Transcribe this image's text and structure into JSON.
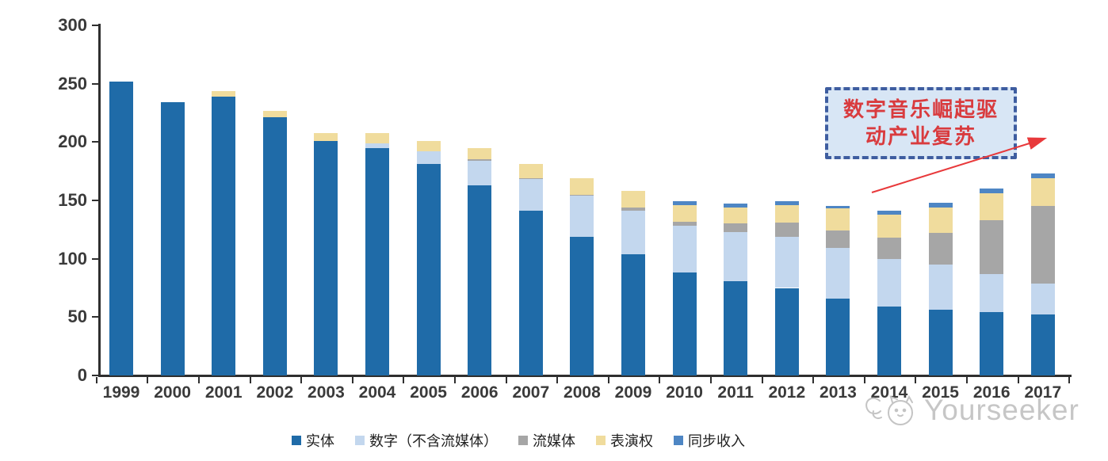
{
  "chart_data": {
    "type": "bar",
    "stacked": true,
    "title": "",
    "xlabel": "",
    "ylabel": "",
    "categories": [
      "1999",
      "2000",
      "2001",
      "2002",
      "2003",
      "2004",
      "2005",
      "2006",
      "2007",
      "2008",
      "2009",
      "2010",
      "2011",
      "2012",
      "2013",
      "2014",
      "2015",
      "2016",
      "2017"
    ],
    "series": [
      {
        "name": "实体",
        "key": "physical",
        "color": "#1f6ba8",
        "values": [
          252,
          234,
          239,
          221,
          201,
          195,
          181,
          163,
          141,
          119,
          104,
          88,
          81,
          75,
          66,
          59,
          56,
          54,
          52
        ]
      },
      {
        "name": "数字（不含流媒体）",
        "key": "digital-excl-streaming",
        "color": "#c3d7ee",
        "values": [
          0,
          0,
          0,
          0,
          0,
          4,
          11,
          21,
          27,
          35,
          37,
          40,
          42,
          44,
          43,
          41,
          39,
          33,
          27
        ]
      },
      {
        "name": "流媒体",
        "key": "streaming",
        "color": "#a6a6a6",
        "values": [
          0,
          0,
          0,
          0,
          0,
          0,
          0,
          1,
          1,
          1,
          3,
          4,
          7,
          12,
          15,
          18,
          27,
          46,
          66
        ]
      },
      {
        "name": "表演权",
        "key": "performance-rights",
        "color": "#f0dc9d",
        "values": [
          0,
          0,
          5,
          6,
          7,
          9,
          9,
          10,
          12,
          14,
          14,
          14,
          14,
          15,
          19,
          20,
          22,
          23,
          24
        ]
      },
      {
        "name": "同步收入",
        "key": "sync-revenue",
        "color": "#4e86c4",
        "values": [
          0,
          0,
          0,
          0,
          0,
          0,
          0,
          0,
          0,
          0,
          0,
          3,
          3,
          3,
          2,
          3,
          4,
          4,
          4
        ]
      }
    ],
    "ylim": [
      0,
      300
    ],
    "yticks": [
      0,
      50,
      100,
      150,
      200,
      250,
      300
    ],
    "grid": false,
    "legend_position": "bottom"
  },
  "annotation": {
    "line1": "数字音乐崛起驱",
    "line2": "动产业复苏",
    "box_fill": "#d8e6f5",
    "border_color": "#3e5da0",
    "text_color": "#d93b3e",
    "arrow_color": "#e8393b"
  },
  "watermark": {
    "text": "Yourseeker",
    "color": "#c6c6c6"
  },
  "style": {
    "axis_color": "#2f2f2f",
    "label_color": "#3a3a3a"
  }
}
